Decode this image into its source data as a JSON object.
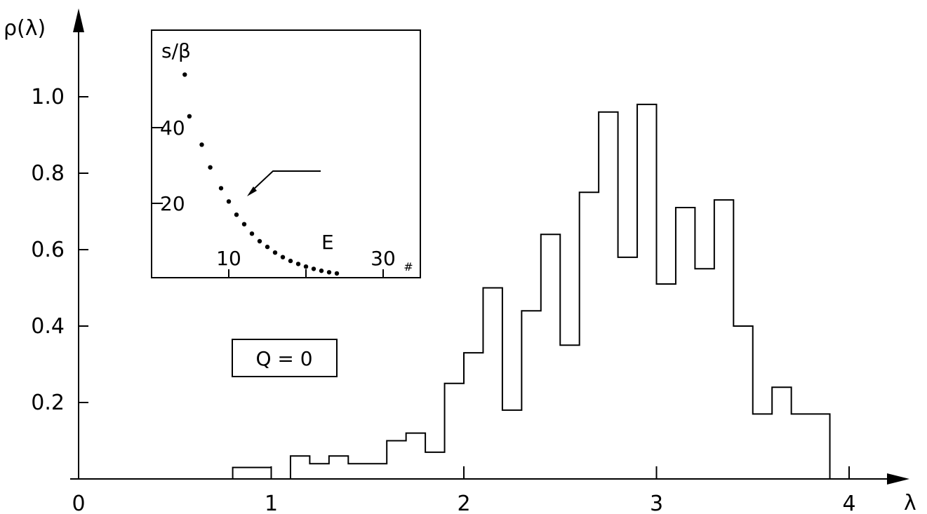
{
  "chart_data": [
    {
      "type": "histogram",
      "ylabel": "ρ(λ)",
      "xlabel": "λ",
      "xlim": [
        0,
        4.3
      ],
      "ylim": [
        0,
        1.2
      ],
      "x_ticks": [
        "0",
        "1",
        "2",
        "3",
        "4"
      ],
      "y_ticks": [
        "0.2",
        "0.4",
        "0.6",
        "0.8",
        "1.0"
      ],
      "annotation": "Q = 0",
      "bins": [
        {
          "x0": 0.8,
          "x1": 1.0,
          "y": 0.03
        },
        {
          "x0": 1.1,
          "x1": 1.2,
          "y": 0.06
        },
        {
          "x0": 1.2,
          "x1": 1.3,
          "y": 0.04
        },
        {
          "x0": 1.3,
          "x1": 1.4,
          "y": 0.06
        },
        {
          "x0": 1.4,
          "x1": 1.6,
          "y": 0.04
        },
        {
          "x0": 1.6,
          "x1": 1.7,
          "y": 0.1
        },
        {
          "x0": 1.7,
          "x1": 1.8,
          "y": 0.12
        },
        {
          "x0": 1.8,
          "x1": 1.9,
          "y": 0.07
        },
        {
          "x0": 1.9,
          "x1": 2.0,
          "y": 0.25
        },
        {
          "x0": 2.0,
          "x1": 2.1,
          "y": 0.33
        },
        {
          "x0": 2.1,
          "x1": 2.2,
          "y": 0.5
        },
        {
          "x0": 2.2,
          "x1": 2.3,
          "y": 0.18
        },
        {
          "x0": 2.3,
          "x1": 2.4,
          "y": 0.44
        },
        {
          "x0": 2.4,
          "x1": 2.5,
          "y": 0.64
        },
        {
          "x0": 2.5,
          "x1": 2.6,
          "y": 0.35
        },
        {
          "x0": 2.6,
          "x1": 2.7,
          "y": 0.75
        },
        {
          "x0": 2.7,
          "x1": 2.8,
          "y": 0.96
        },
        {
          "x0": 2.8,
          "x1": 2.9,
          "y": 0.58
        },
        {
          "x0": 2.9,
          "x1": 3.0,
          "y": 0.98
        },
        {
          "x0": 3.0,
          "x1": 3.1,
          "y": 0.51
        },
        {
          "x0": 3.1,
          "x1": 3.2,
          "y": 0.71
        },
        {
          "x0": 3.2,
          "x1": 3.3,
          "y": 0.55
        },
        {
          "x0": 3.3,
          "x1": 3.4,
          "y": 0.73
        },
        {
          "x0": 3.4,
          "x1": 3.5,
          "y": 0.4
        },
        {
          "x0": 3.5,
          "x1": 3.6,
          "y": 0.17
        },
        {
          "x0": 3.6,
          "x1": 3.7,
          "y": 0.24
        },
        {
          "x0": 3.7,
          "x1": 3.9,
          "y": 0.17
        }
      ]
    },
    {
      "type": "scatter",
      "ylabel": "s/β",
      "xlabel": "E",
      "x_ticks": [
        "10",
        "30"
      ],
      "x_tick_suffix": "#",
      "y_ticks": [
        "20",
        "40"
      ],
      "xlim": [
        0,
        35
      ],
      "ylim": [
        0,
        56
      ],
      "points": [
        [
          4.3,
          54
        ],
        [
          4.9,
          43
        ],
        [
          6.5,
          35.5
        ],
        [
          7.6,
          29.5
        ],
        [
          9.0,
          24.0
        ],
        [
          10.0,
          20.5
        ],
        [
          11.0,
          17.0
        ],
        [
          12.0,
          14.5
        ],
        [
          13.0,
          12.0
        ],
        [
          14.0,
          10.0
        ],
        [
          15.0,
          8.5
        ],
        [
          16.0,
          7.0
        ],
        [
          17.0,
          5.8
        ],
        [
          18.0,
          4.8
        ],
        [
          19.0,
          4.0
        ],
        [
          20.0,
          3.3
        ],
        [
          21.0,
          2.7
        ],
        [
          22.0,
          2.2
        ],
        [
          23.0,
          1.8
        ],
        [
          24.0,
          1.5
        ]
      ]
    }
  ]
}
